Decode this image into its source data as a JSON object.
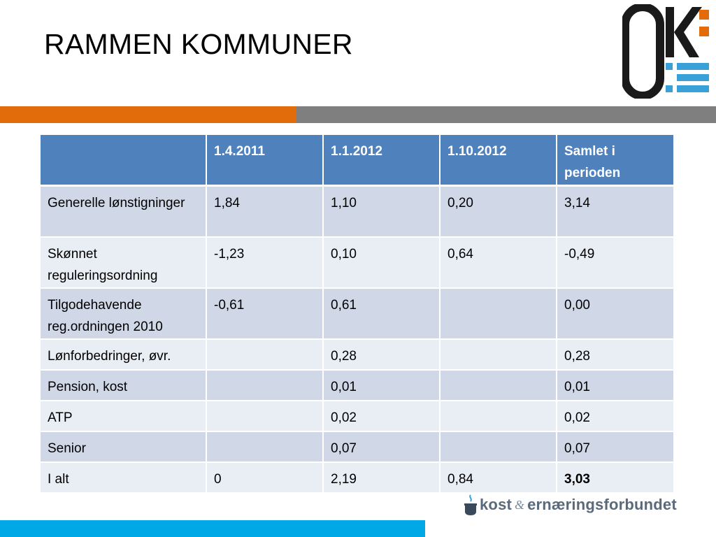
{
  "slide": {
    "title": "RAMMEN KOMMUNER"
  },
  "table": {
    "headers": [
      "",
      "1.4.2011",
      "1.1.2012",
      "1.10.2012",
      "Samlet i perioden"
    ],
    "rows": [
      [
        "Generelle lønstigninger",
        "1,84",
        "1,10",
        "0,20",
        "3,14"
      ],
      [
        "Skønnet reguleringsordning",
        "-1,23",
        "0,10",
        "0,64",
        "-0,49"
      ],
      [
        "Tilgodehavende reg.ordningen 2010",
        "-0,61",
        "0,61",
        "",
        "0,00"
      ],
      [
        "Lønforbedringer, øvr.",
        "",
        "0,28",
        "",
        "0,28"
      ],
      [
        "Pension, kost",
        "",
        "0,01",
        "",
        "0,01"
      ],
      [
        "ATP",
        "",
        "0,02",
        "",
        "0,02"
      ],
      [
        "Senior",
        "",
        "0,07",
        "",
        "0,07"
      ],
      [
        "I alt",
        "0",
        "2,19",
        "0,84",
        "3,03"
      ]
    ]
  },
  "footer": {
    "brand_part1": "kost",
    "brand_amp": "&",
    "brand_part2": "ernæringsforbundet"
  },
  "colors": {
    "header_bg": "#4f81bd",
    "row_odd": "#d0d8e8",
    "row_even": "#e9edf4",
    "accent_orange": "#e36c0a",
    "accent_gray": "#7f7f7f",
    "accent_blue": "#00a9e6"
  },
  "icons": {
    "ok_logo": "ok-logo-icon",
    "pot_logo": "cooking-pot-icon"
  }
}
